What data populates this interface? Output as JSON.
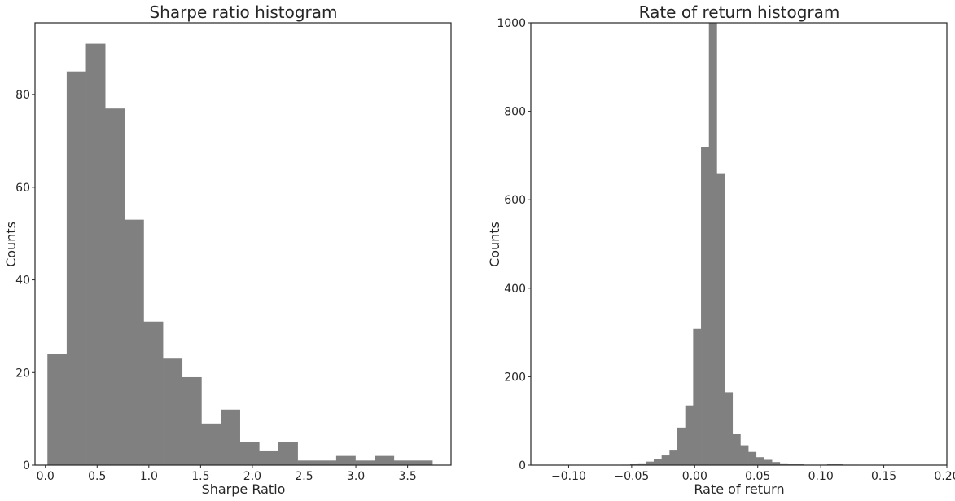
{
  "chart_data": [
    {
      "type": "bar",
      "title": "Sharpe ratio histogram",
      "xlabel": "Sharpe Ratio",
      "ylabel": "Counts",
      "color": "#808080",
      "xlim": [
        -0.1,
        3.92
      ],
      "ylim": [
        0,
        95.5
      ],
      "xticks": [
        0.0,
        0.5,
        1.0,
        1.5,
        2.0,
        2.5,
        3.0,
        3.5
      ],
      "xtick_labels": [
        "0.0",
        "0.5",
        "1.0",
        "1.5",
        "2.0",
        "2.5",
        "3.0",
        "3.5"
      ],
      "yticks": [
        0,
        20,
        40,
        60,
        80
      ],
      "ytick_labels": [
        "0",
        "20",
        "40",
        "60",
        "80"
      ],
      "bin_start": 0.02,
      "bin_width": 0.186,
      "values": [
        24,
        85,
        91,
        77,
        53,
        31,
        23,
        19,
        9,
        12,
        5,
        3,
        5,
        1,
        1,
        2,
        1,
        2,
        1,
        1
      ],
      "grid": false,
      "legend": "none"
    },
    {
      "type": "bar",
      "title": "Rate of return histogram",
      "xlabel": "Rate of return",
      "ylabel": "Counts",
      "color": "#808080",
      "xlim": [
        -0.13,
        0.2
      ],
      "ylim": [
        0,
        1000
      ],
      "xticks": [
        -0.1,
        -0.05,
        0.0,
        0.05,
        0.1,
        0.15,
        0.2
      ],
      "xtick_labels": [
        "−0.10",
        "−0.05",
        "0.00",
        "0.05",
        "0.10",
        "0.15",
        "0.20"
      ],
      "yticks": [
        0,
        200,
        400,
        600,
        800,
        1000
      ],
      "ytick_labels": [
        "0",
        "200",
        "400",
        "600",
        "800",
        "1000"
      ],
      "bin_start": -0.12,
      "bin_width": 0.00625,
      "values": [
        0,
        0,
        0,
        0,
        0,
        0,
        0,
        0,
        0,
        0,
        1,
        2,
        4,
        8,
        14,
        22,
        33,
        85,
        135,
        308,
        720,
        1000,
        660,
        165,
        70,
        45,
        30,
        18,
        12,
        7,
        4,
        2,
        2,
        1,
        1,
        1,
        2,
        2,
        1,
        1,
        0,
        0,
        0,
        0,
        0,
        0,
        0,
        0,
        0,
        0,
        0,
        0
      ],
      "grid": false,
      "legend": "none"
    }
  ]
}
